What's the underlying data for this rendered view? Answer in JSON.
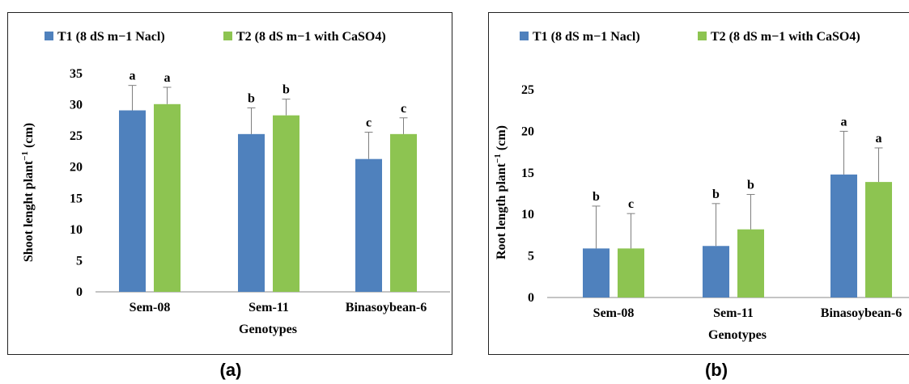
{
  "colors": {
    "t1": "#4f81bd",
    "t2": "#8dc451",
    "axis": "#888888",
    "text": "#000000"
  },
  "panel_labels": {
    "a": "(a)",
    "b": "(b)"
  },
  "chart_data": [
    {
      "type": "bar",
      "id": "a",
      "categories": [
        "Sem-08",
        "Sem-11",
        "Binasoybean-6"
      ],
      "series": [
        {
          "name": "T1 (8 dS m−1 Nacl)",
          "values": [
            29.1,
            25.3,
            21.3
          ],
          "errors": [
            4.0,
            4.2,
            4.3
          ],
          "letters": [
            "a",
            "b",
            "c"
          ]
        },
        {
          "name": "T2 (8 dS m−1 with CaSO4)",
          "values": [
            30.1,
            28.3,
            25.3
          ],
          "errors": [
            2.7,
            2.6,
            2.6
          ],
          "letters": [
            "a",
            "b",
            "c"
          ]
        }
      ],
      "xlabel": "Genotypes",
      "ylabel_main": "Shoot lenght plant",
      "ylabel_sup": "−1",
      "ylabel_tail": " (cm)",
      "ylim": [
        0,
        35
      ],
      "yticks": [
        0,
        5,
        10,
        15,
        20,
        25,
        30,
        35
      ],
      "grid": false,
      "legend": "top"
    },
    {
      "type": "bar",
      "id": "b",
      "categories": [
        "Sem-08",
        "Sem-11",
        "Binasoybean-6"
      ],
      "series": [
        {
          "name": "T1 (8 dS m−1 Nacl)",
          "values": [
            5.9,
            6.2,
            14.8
          ],
          "errors": [
            5.1,
            5.1,
            5.2
          ],
          "letters": [
            "b",
            "b",
            "a"
          ]
        },
        {
          "name": "T2 (8 dS m−1 with CaSO4)",
          "values": [
            5.9,
            8.2,
            13.9
          ],
          "errors": [
            4.2,
            4.2,
            4.1
          ],
          "letters": [
            "c",
            "b",
            "a"
          ]
        }
      ],
      "xlabel": "Genotypes",
      "ylabel_main": "Root length plant",
      "ylabel_sup": "−1",
      "ylabel_tail": " (cm)",
      "ylim": [
        0,
        25
      ],
      "yticks": [
        0,
        5,
        10,
        15,
        20,
        25
      ],
      "grid": false,
      "legend": "top"
    }
  ]
}
